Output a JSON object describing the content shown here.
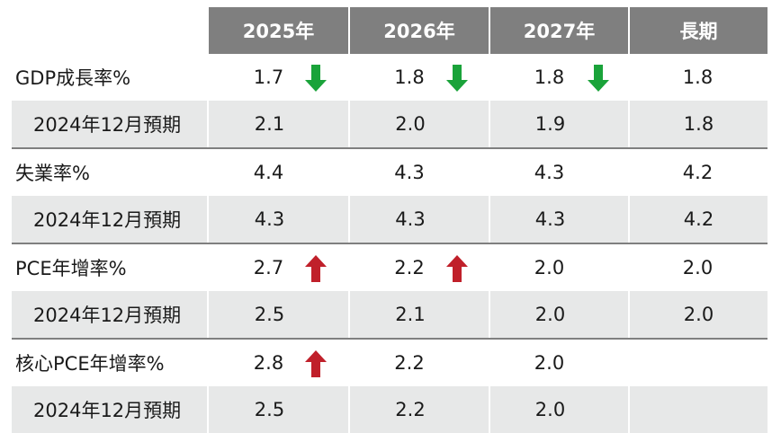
{
  "colors": {
    "header_bg": "#7f7f7f",
    "sub_row_bg": "#e7e8e8",
    "up_arrow": "#c0202a",
    "down_arrow": "#1aa33a"
  },
  "header": {
    "columns": [
      "2025年",
      "2026年",
      "2027年",
      "長期"
    ]
  },
  "rows": [
    {
      "label": "GDP成長率%",
      "values": [
        "1.7",
        "1.8",
        "1.8",
        "1.8"
      ],
      "arrows": [
        "down",
        "down",
        "down",
        ""
      ]
    },
    {
      "label": "2024年12月預期",
      "values": [
        "2.1",
        "2.0",
        "1.9",
        "1.8"
      ],
      "arrows": [
        "",
        "",
        "",
        ""
      ]
    },
    {
      "label": "失業率%",
      "values": [
        "4.4",
        "4.3",
        "4.3",
        "4.2"
      ],
      "arrows": [
        "",
        "",
        "",
        ""
      ]
    },
    {
      "label": "2024年12月預期",
      "values": [
        "4.3",
        "4.3",
        "4.3",
        "4.2"
      ],
      "arrows": [
        "",
        "",
        "",
        ""
      ]
    },
    {
      "label": "PCE年增率%",
      "values": [
        "2.7",
        "2.2",
        "2.0",
        "2.0"
      ],
      "arrows": [
        "up",
        "up",
        "",
        ""
      ]
    },
    {
      "label": "2024年12月預期",
      "values": [
        "2.5",
        "2.1",
        "2.0",
        "2.0"
      ],
      "arrows": [
        "",
        "",
        "",
        ""
      ]
    },
    {
      "label": "核心PCE年增率%",
      "values": [
        "2.8",
        "2.2",
        "2.0",
        ""
      ],
      "arrows": [
        "up",
        "",
        "",
        ""
      ]
    },
    {
      "label": "2024年12月預期",
      "values": [
        "2.5",
        "2.2",
        "2.0",
        ""
      ],
      "arrows": [
        "",
        "",
        "",
        ""
      ]
    }
  ]
}
